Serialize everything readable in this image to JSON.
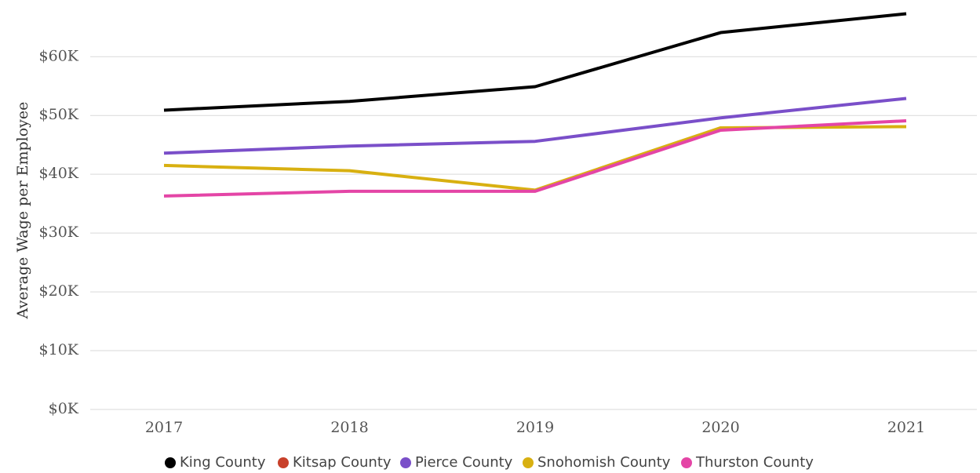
{
  "chart_data": {
    "type": "line",
    "y_label": "Average Wage per Employee",
    "categories": [
      "2017",
      "2018",
      "2019",
      "2020",
      "2021"
    ],
    "series": [
      {
        "name": "King County",
        "color": "#000000",
        "values": [
          50900,
          52400,
          54900,
          64100,
          67300
        ]
      },
      {
        "name": "Kitsap County",
        "color": "#c8402a",
        "values": [
          null,
          null,
          null,
          null,
          null
        ]
      },
      {
        "name": "Pierce County",
        "color": "#7a4fc9",
        "values": [
          43600,
          44800,
          45600,
          49600,
          52900
        ]
      },
      {
        "name": "Snohomish County",
        "color": "#d8b011",
        "values": [
          41500,
          40600,
          37300,
          47900,
          48100
        ]
      },
      {
        "name": "Thurston County",
        "color": "#e445a6",
        "values": [
          36300,
          37100,
          37100,
          47500,
          49100
        ]
      }
    ],
    "ylim": [
      0,
      69000
    ],
    "yticks": [
      {
        "value": 0,
        "label": "$0K"
      },
      {
        "value": 10000,
        "label": "$10K"
      },
      {
        "value": 20000,
        "label": "$20K"
      },
      {
        "value": 30000,
        "label": "$30K"
      },
      {
        "value": 40000,
        "label": "$40K"
      },
      {
        "value": 50000,
        "label": "$50K"
      },
      {
        "value": 60000,
        "label": "$60K"
      }
    ],
    "grid": true,
    "legend": "bottom"
  }
}
